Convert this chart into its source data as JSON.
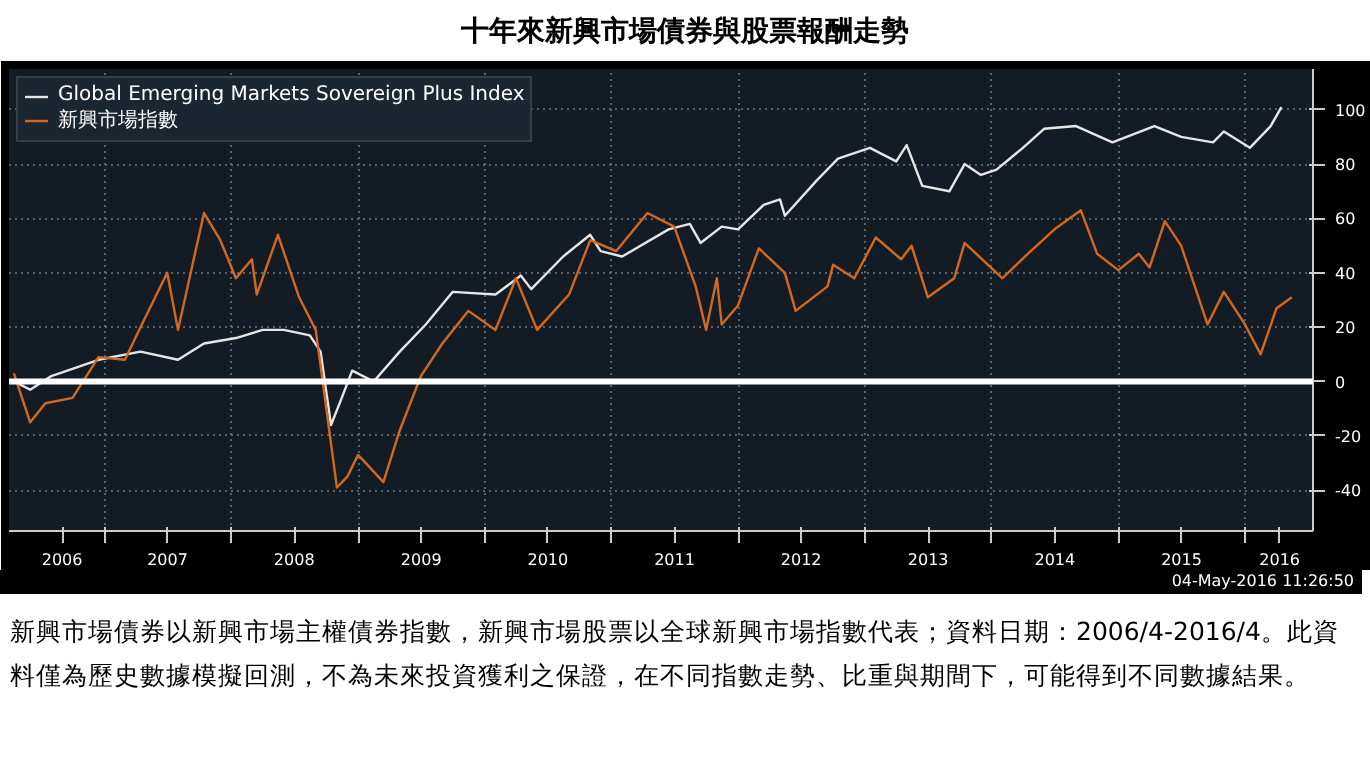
{
  "chart_data": {
    "type": "line",
    "title": "十年來新興市場債券與股票報酬走勢",
    "series": [
      {
        "name": "Global Emerging Markets Sovereign Plus Index",
        "color": "#e6e6e6",
        "x": [
          "2006-04-15",
          "2006-06-01",
          "2006-08-01",
          "2006-12-15",
          "2007-04-15",
          "2007-08-01",
          "2007-10-15",
          "2008-01-15",
          "2008-04-01",
          "2008-06-01",
          "2008-08-15",
          "2008-09-15",
          "2008-10-15",
          "2008-11-15",
          "2008-12-15",
          "2009-02-15",
          "2009-05-01",
          "2009-07-15",
          "2009-10-01",
          "2010-02-01",
          "2010-04-15",
          "2010-05-15",
          "2010-08-15",
          "2010-11-01",
          "2010-12-01",
          "2011-02-01",
          "2011-06-15",
          "2011-08-15",
          "2011-09-15",
          "2011-11-15",
          "2012-01-01",
          "2012-03-15",
          "2012-05-01",
          "2012-05-15",
          "2012-08-15",
          "2012-10-15",
          "2013-01-15",
          "2013-04-01",
          "2013-05-01",
          "2013-06-15",
          "2013-09-01",
          "2013-10-15",
          "2013-12-01",
          "2014-01-15",
          "2014-04-01",
          "2014-06-01",
          "2014-09-01",
          "2014-12-15",
          "2015-04-15",
          "2015-07-01",
          "2015-10-01",
          "2015-11-01",
          "2016-01-15",
          "2016-03-15",
          "2016-04-15"
        ],
        "values": [
          0,
          -3,
          2,
          8,
          11,
          8,
          14,
          16,
          19,
          19,
          17,
          11,
          -16,
          -6,
          4,
          0,
          11,
          21,
          33,
          32,
          39,
          34,
          46,
          54,
          48,
          46,
          56,
          58,
          51,
          57,
          56,
          65,
          67,
          61,
          74,
          82,
          86,
          81,
          87,
          72,
          70,
          80,
          76,
          78,
          86,
          93,
          94,
          88,
          94,
          90,
          88,
          92,
          86,
          94,
          101
        ]
      },
      {
        "name": "新興市場指數",
        "color": "#d2691e",
        "x": [
          "2006-04-15",
          "2006-06-01",
          "2006-07-15",
          "2006-10-01",
          "2006-12-15",
          "2007-03-01",
          "2007-04-15",
          "2007-07-01",
          "2007-08-01",
          "2007-10-15",
          "2007-12-01",
          "2008-01-15",
          "2008-03-01",
          "2008-03-15",
          "2008-05-15",
          "2008-07-15",
          "2008-09-01",
          "2008-11-01",
          "2008-12-01",
          "2009-01-01",
          "2009-03-15",
          "2009-05-01",
          "2009-07-01",
          "2009-09-01",
          "2009-11-15",
          "2010-02-01",
          "2010-04-01",
          "2010-06-01",
          "2010-09-01",
          "2010-11-01",
          "2011-01-15",
          "2011-04-15",
          "2011-07-01",
          "2011-09-01",
          "2011-10-01",
          "2011-11-01",
          "2011-11-15",
          "2012-01-01",
          "2012-03-01",
          "2012-05-15",
          "2012-06-15",
          "2012-09-15",
          "2012-10-01",
          "2012-12-01",
          "2013-02-01",
          "2013-04-15",
          "2013-05-15",
          "2013-07-01",
          "2013-09-15",
          "2013-10-15",
          "2014-02-01",
          "2014-04-15",
          "2014-07-01",
          "2014-09-15",
          "2014-11-01",
          "2015-01-01",
          "2015-03-01",
          "2015-04-01",
          "2015-05-15",
          "2015-07-01",
          "2015-09-15",
          "2015-11-01",
          "2016-01-01",
          "2016-02-15",
          "2016-04-01",
          "2016-05-15"
        ],
        "values": [
          3,
          -15,
          -8,
          -6,
          9,
          8,
          20,
          40,
          19,
          62,
          52,
          38,
          45,
          32,
          54,
          31,
          19,
          -39,
          -35,
          -27,
          -37,
          -18,
          2,
          14,
          26,
          19,
          38,
          19,
          32,
          52,
          48,
          62,
          57,
          35,
          19,
          38,
          21,
          28,
          49,
          40,
          26,
          35,
          43,
          38,
          53,
          45,
          50,
          31,
          38,
          51,
          38,
          47,
          56,
          63,
          47,
          41,
          47,
          42,
          59,
          50,
          21,
          33,
          21,
          10,
          27,
          31
        ]
      }
    ],
    "xlim": [
      "2006-04-01",
      "2016-07-15"
    ],
    "xticks": [
      {
        "value": "2006-09-01",
        "label": "2006"
      },
      {
        "value": "2007-01-01",
        "label": null
      },
      {
        "value": "2007-07-02",
        "label": "2007"
      },
      {
        "value": "2008-01-01",
        "label": null
      },
      {
        "value": "2008-07-01",
        "label": "2008"
      },
      {
        "value": "2009-01-01",
        "label": null
      },
      {
        "value": "2009-07-02",
        "label": "2009"
      },
      {
        "value": "2010-01-01",
        "label": null
      },
      {
        "value": "2010-07-02",
        "label": "2010"
      },
      {
        "value": "2011-01-01",
        "label": null
      },
      {
        "value": "2011-07-02",
        "label": "2011"
      },
      {
        "value": "2012-01-01",
        "label": null
      },
      {
        "value": "2012-07-01",
        "label": "2012"
      },
      {
        "value": "2013-01-01",
        "label": null
      },
      {
        "value": "2013-07-02",
        "label": "2013"
      },
      {
        "value": "2014-01-01",
        "label": null
      },
      {
        "value": "2014-07-02",
        "label": "2014"
      },
      {
        "value": "2015-01-01",
        "label": null
      },
      {
        "value": "2015-07-02",
        "label": "2015"
      },
      {
        "value": "2016-01-01",
        "label": null
      },
      {
        "value": "2016-04-10",
        "label": "2016"
      }
    ],
    "ylim": [
      -55,
      115
    ],
    "yticks": [
      -40,
      -20,
      0,
      20,
      40,
      60,
      80,
      100
    ],
    "ref_lines": [
      {
        "axis": "y",
        "value": 0,
        "color": "#ffffff"
      }
    ],
    "grid": true,
    "legend": "top left",
    "annotations": [
      "04-May-2016 11:26:50",
      "新興市場債券以新興市場主權債券指數，新興市場股票以全球新興市場指數代表；資料日期：2006/4-2016/4。此資料僅為歷史數據模擬回測，不為未來投資獲利之保證，在不同指數走勢、比重與期間下，可能得到不同數據結果。"
    ]
  }
}
